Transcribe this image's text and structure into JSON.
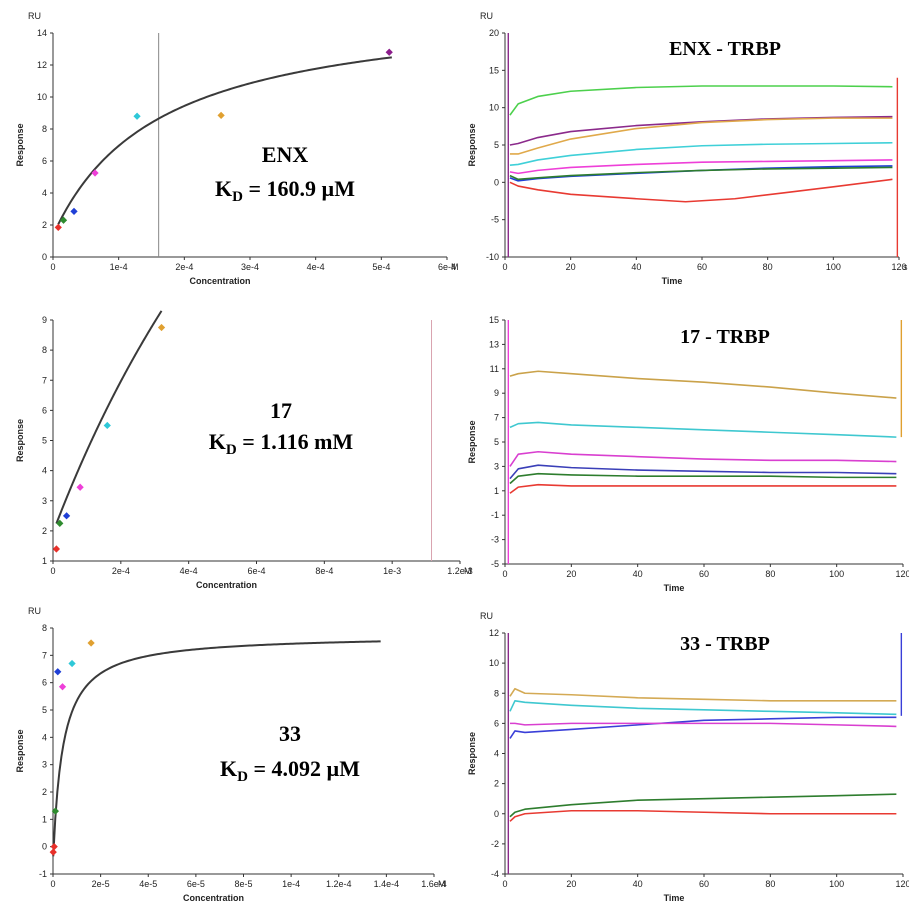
{
  "chart_data": [
    {
      "id": "enx-fit",
      "type": "scatter",
      "title": "",
      "xlabel": "Concentration",
      "ylabel": "Response",
      "y_unit": "RU",
      "x_unit": "M",
      "xlim": [
        0,
        0.0006
      ],
      "ylim": [
        0,
        14
      ],
      "x_ticks": [
        0,
        0.0001,
        0.0002,
        0.0003,
        0.0004,
        0.0005,
        0.0006
      ],
      "x_tick_labels": [
        "0",
        "1e-4",
        "2e-4",
        "3e-4",
        "4e-4",
        "5e-4",
        "6e-4"
      ],
      "y_ticks": [
        0,
        2,
        4,
        6,
        8,
        10,
        12,
        14
      ],
      "y_tick_labels": [
        "0",
        "2",
        "4",
        "6",
        "8",
        "10",
        "12",
        "14"
      ],
      "grid": false,
      "points": [
        {
          "x": 8e-06,
          "y": 1.85,
          "color": "#e8302a"
        },
        {
          "x": 1.6e-05,
          "y": 2.3,
          "color": "#2e8b2e"
        },
        {
          "x": 3.2e-05,
          "y": 2.85,
          "color": "#1f3fd6"
        },
        {
          "x": 6.4e-05,
          "y": 5.25,
          "color": "#ee3fd8"
        },
        {
          "x": 0.000128,
          "y": 8.8,
          "color": "#2ec8d8"
        },
        {
          "x": 0.000256,
          "y": 8.85,
          "color": "#e0a030"
        },
        {
          "x": 0.000512,
          "y": 12.8,
          "color": "#8b1c8b"
        }
      ],
      "fit": {
        "model": "steady-state",
        "Rmax": 14.6,
        "KD": 0.0001609,
        "offset": 1.35
      },
      "vline": 0.0001609,
      "vline_color": "#888888",
      "annotation": {
        "line1": "ENX",
        "kd_label": "K",
        "kd_sub": "D",
        "kd_value": "= 160.9 µM"
      }
    },
    {
      "id": "enx-sensor",
      "type": "line",
      "title": "ENX - TRBP",
      "xlabel": "Time",
      "ylabel": "Response",
      "y_unit": "RU",
      "x_unit": "s",
      "xlim": [
        0,
        120
      ],
      "ylim": [
        -10,
        20
      ],
      "x_ticks": [
        0,
        20,
        40,
        60,
        80,
        100,
        120
      ],
      "x_tick_labels": [
        "0",
        "20",
        "40",
        "60",
        "80",
        "100",
        "120"
      ],
      "y_ticks": [
        -10,
        -5,
        0,
        5,
        10,
        15,
        20
      ],
      "y_tick_labels": [
        "-10",
        "-5",
        "0",
        "5",
        "10",
        "15",
        "20"
      ],
      "grid": false,
      "series": [
        {
          "color": "#4cd04c",
          "x": [
            1.5,
            4,
            10,
            20,
            40,
            60,
            80,
            100,
            118
          ],
          "y": [
            9,
            10.5,
            11.5,
            12.2,
            12.7,
            12.9,
            12.9,
            12.9,
            12.8
          ]
        },
        {
          "color": "#8b2a8b",
          "x": [
            1.5,
            4,
            10,
            20,
            40,
            60,
            80,
            100,
            118
          ],
          "y": [
            5,
            5.2,
            6.0,
            6.8,
            7.6,
            8.1,
            8.5,
            8.7,
            8.8
          ]
        },
        {
          "color": "#e0a94a",
          "x": [
            1.5,
            4,
            10,
            20,
            40,
            60,
            80,
            100,
            118
          ],
          "y": [
            3.8,
            3.8,
            4.6,
            5.8,
            7.2,
            8.0,
            8.4,
            8.6,
            8.6
          ]
        },
        {
          "color": "#3fd0d8",
          "x": [
            1.5,
            4,
            10,
            20,
            40,
            60,
            80,
            100,
            118
          ],
          "y": [
            2.3,
            2.4,
            3.0,
            3.6,
            4.4,
            4.9,
            5.1,
            5.2,
            5.3
          ]
        },
        {
          "color": "#ee3fd8",
          "x": [
            1.5,
            4,
            10,
            20,
            40,
            60,
            80,
            100,
            118
          ],
          "y": [
            1.4,
            1.2,
            1.6,
            2.0,
            2.4,
            2.7,
            2.8,
            2.9,
            3.0
          ]
        },
        {
          "color": "#1f3fd6",
          "x": [
            1.5,
            4,
            10,
            20,
            40,
            60,
            80,
            100,
            118
          ],
          "y": [
            0.6,
            0.2,
            0.5,
            0.8,
            1.2,
            1.6,
            1.9,
            2.1,
            2.2
          ]
        },
        {
          "color": "#2e7d2e",
          "x": [
            1.5,
            4,
            10,
            20,
            40,
            60,
            80,
            100,
            118
          ],
          "y": [
            0.9,
            0.4,
            0.6,
            0.9,
            1.3,
            1.6,
            1.8,
            1.9,
            2.0
          ]
        },
        {
          "color": "#e83a32",
          "x": [
            1.5,
            4,
            10,
            20,
            40,
            55,
            70,
            85,
            100,
            118
          ],
          "y": [
            0,
            -0.5,
            -1.0,
            -1.6,
            -2.2,
            -2.6,
            -2.2,
            -1.4,
            -0.6,
            0.4
          ]
        }
      ],
      "edge_left": "#8b2a8b",
      "edge_right": "#e83a32",
      "edge_left_range": [
        -10,
        20
      ],
      "edge_right_range": [
        -10,
        14
      ]
    },
    {
      "id": "c17-fit",
      "type": "scatter",
      "title": "",
      "xlabel": "Concentration",
      "ylabel": "Response",
      "y_unit": "",
      "x_unit": "M",
      "xlim": [
        0,
        0.0012
      ],
      "ylim": [
        1,
        9
      ],
      "x_ticks": [
        0,
        0.0002,
        0.0004,
        0.0006,
        0.0008,
        0.001,
        0.0012
      ],
      "x_tick_labels": [
        "0",
        "2e-4",
        "4e-4",
        "6e-4",
        "8e-4",
        "1e-3",
        "1.2e-3"
      ],
      "y_ticks": [
        1,
        2,
        3,
        4,
        5,
        6,
        7,
        8,
        9
      ],
      "y_tick_labels": [
        "1",
        "2",
        "3",
        "4",
        "5",
        "6",
        "7",
        "8",
        "9"
      ],
      "grid": false,
      "points": [
        {
          "x": 1e-05,
          "y": 1.4,
          "color": "#e8302a"
        },
        {
          "x": 2e-05,
          "y": 2.25,
          "color": "#2e8b2e"
        },
        {
          "x": 4e-05,
          "y": 2.5,
          "color": "#1f3fd6"
        },
        {
          "x": 8e-05,
          "y": 3.45,
          "color": "#ee3fd8"
        },
        {
          "x": 0.00016,
          "y": 5.5,
          "color": "#2ec8d8"
        },
        {
          "x": 0.00032,
          "y": 8.75,
          "color": "#e0a030"
        }
      ],
      "fit": {
        "model": "steady-state",
        "Rmax": 33.0,
        "KD": 0.001116,
        "offset": 1.95,
        "xmax": 0.00032
      },
      "vline": 0.001116,
      "vline_color": "#d9a3b0",
      "annotation": {
        "line1": "17",
        "kd_label": "K",
        "kd_sub": "D",
        "kd_value": "= 1.116 mM"
      }
    },
    {
      "id": "c17-sensor",
      "type": "line",
      "title": "17 - TRBP",
      "xlabel": "Time",
      "ylabel": "Response",
      "y_unit": "",
      "x_unit": "",
      "xlim": [
        0,
        120
      ],
      "ylim": [
        -5,
        15
      ],
      "x_ticks": [
        0,
        20,
        40,
        60,
        80,
        100,
        120
      ],
      "x_tick_labels": [
        "0",
        "20",
        "40",
        "60",
        "80",
        "100",
        "120"
      ],
      "y_ticks": [
        -5,
        -3,
        -1,
        1,
        3,
        5,
        7,
        9,
        11,
        13,
        15
      ],
      "y_tick_labels": [
        "-5",
        "-3",
        "-1",
        "1",
        "3",
        "5",
        "7",
        "9",
        "11",
        "13",
        "15"
      ],
      "grid": false,
      "series": [
        {
          "color": "#caa24a",
          "x": [
            1.5,
            4,
            10,
            20,
            40,
            60,
            80,
            100,
            118
          ],
          "y": [
            10.4,
            10.6,
            10.8,
            10.6,
            10.2,
            9.9,
            9.5,
            9.0,
            8.6
          ]
        },
        {
          "color": "#3fc8d0",
          "x": [
            1.5,
            4,
            10,
            20,
            40,
            60,
            80,
            100,
            118
          ],
          "y": [
            6.2,
            6.5,
            6.6,
            6.4,
            6.2,
            6.0,
            5.8,
            5.6,
            5.4
          ]
        },
        {
          "color": "#d93fd0",
          "x": [
            1.5,
            4,
            10,
            20,
            40,
            60,
            80,
            100,
            118
          ],
          "y": [
            3.0,
            4.0,
            4.2,
            4.0,
            3.8,
            3.6,
            3.5,
            3.5,
            3.4
          ]
        },
        {
          "color": "#3a3fb8",
          "x": [
            1.5,
            4,
            10,
            20,
            40,
            60,
            80,
            100,
            118
          ],
          "y": [
            2.0,
            2.8,
            3.1,
            2.9,
            2.7,
            2.6,
            2.5,
            2.5,
            2.4
          ]
        },
        {
          "color": "#2e7d2e",
          "x": [
            1.5,
            4,
            10,
            20,
            40,
            60,
            80,
            100,
            118
          ],
          "y": [
            1.6,
            2.2,
            2.4,
            2.3,
            2.2,
            2.2,
            2.2,
            2.1,
            2.1
          ]
        },
        {
          "color": "#e83a32",
          "x": [
            1.5,
            4,
            10,
            20,
            40,
            60,
            80,
            100,
            118
          ],
          "y": [
            0.8,
            1.3,
            1.5,
            1.4,
            1.4,
            1.4,
            1.4,
            1.4,
            1.4
          ]
        }
      ],
      "edge_left": "#ee3fd8",
      "edge_right": "#e0a030",
      "edge_left_range": [
        -5,
        15
      ],
      "edge_right_range": [
        5.4,
        15
      ]
    },
    {
      "id": "c33-fit",
      "type": "scatter",
      "title": "",
      "xlabel": "Concentration",
      "ylabel": "Response",
      "y_unit": "RU",
      "x_unit": "M",
      "xlim": [
        0,
        0.00016
      ],
      "ylim": [
        -1,
        8
      ],
      "x_ticks": [
        0,
        2e-05,
        4e-05,
        6e-05,
        8e-05,
        0.0001,
        0.00012,
        0.00014,
        0.00016
      ],
      "x_tick_labels": [
        "0",
        "2e-5",
        "4e-5",
        "6e-5",
        "8e-5",
        "1e-4",
        "1.2e-4",
        "1.4e-4",
        "1.6e-4"
      ],
      "y_ticks": [
        -1,
        0,
        1,
        2,
        3,
        4,
        5,
        6,
        7,
        8
      ],
      "y_tick_labels": [
        "-1",
        "0",
        "1",
        "2",
        "3",
        "4",
        "5",
        "6",
        "7",
        "8"
      ],
      "grid": false,
      "points": [
        {
          "x": 5e-07,
          "y": 0.0,
          "color": "#e8302a"
        },
        {
          "x": 1e-07,
          "y": -0.2,
          "color": "#e8302a"
        },
        {
          "x": 1e-06,
          "y": 1.3,
          "color": "#2e8b2e"
        },
        {
          "x": 2e-06,
          "y": 6.4,
          "color": "#1f3fd6"
        },
        {
          "x": 4e-06,
          "y": 5.85,
          "color": "#ee3fd8"
        },
        {
          "x": 8e-06,
          "y": 6.7,
          "color": "#2ec8d8"
        },
        {
          "x": 1.6e-05,
          "y": 7.45,
          "color": "#e0a030"
        }
      ],
      "fit": {
        "model": "steady-state",
        "Rmax": 8.3,
        "KD": 4.092e-06,
        "offset": -0.55
      },
      "annotation": {
        "line1": "33",
        "kd_label": "K",
        "kd_sub": "D",
        "kd_value": "= 4.092 µM"
      }
    },
    {
      "id": "c33-sensor",
      "type": "line",
      "title": "33 - TRBP",
      "xlabel": "Time",
      "ylabel": "Response",
      "y_unit": "RU",
      "x_unit": "",
      "xlim": [
        0,
        120
      ],
      "ylim": [
        -4,
        12
      ],
      "x_ticks": [
        0,
        20,
        40,
        60,
        80,
        100,
        120
      ],
      "x_tick_labels": [
        "0",
        "20",
        "40",
        "60",
        "80",
        "100",
        "120"
      ],
      "y_ticks": [
        -4,
        -2,
        0,
        2,
        4,
        6,
        8,
        10,
        12
      ],
      "y_tick_labels": [
        "-4",
        "-2",
        "0",
        "2",
        "4",
        "6",
        "8",
        "10",
        "12"
      ],
      "grid": false,
      "series": [
        {
          "color": "#d4aa55",
          "x": [
            1.5,
            3,
            6,
            20,
            40,
            60,
            80,
            100,
            118
          ],
          "y": [
            7.8,
            8.3,
            8.0,
            7.9,
            7.7,
            7.6,
            7.5,
            7.5,
            7.5
          ]
        },
        {
          "color": "#3fc8d0",
          "x": [
            1.5,
            3,
            6,
            20,
            40,
            60,
            80,
            100,
            118
          ],
          "y": [
            6.8,
            7.5,
            7.4,
            7.2,
            7.0,
            6.9,
            6.8,
            6.7,
            6.6
          ]
        },
        {
          "color": "#3a3fd8",
          "x": [
            1.5,
            3,
            6,
            20,
            40,
            60,
            80,
            100,
            118
          ],
          "y": [
            5.0,
            5.5,
            5.4,
            5.6,
            5.9,
            6.2,
            6.3,
            6.4,
            6.4
          ]
        },
        {
          "color": "#d93fd0",
          "x": [
            1.5,
            3,
            6,
            20,
            40,
            60,
            80,
            100,
            118
          ],
          "y": [
            6.0,
            6.0,
            5.9,
            6.0,
            6.0,
            6.0,
            6.0,
            5.9,
            5.8
          ]
        },
        {
          "color": "#2e7d2e",
          "x": [
            1.5,
            3,
            6,
            20,
            40,
            60,
            80,
            100,
            118
          ],
          "y": [
            -0.2,
            0.1,
            0.3,
            0.6,
            0.9,
            1.0,
            1.1,
            1.2,
            1.3
          ]
        },
        {
          "color": "#e83a32",
          "x": [
            1.5,
            3,
            6,
            20,
            40,
            60,
            80,
            100,
            118
          ],
          "y": [
            -0.5,
            -0.2,
            0.0,
            0.2,
            0.2,
            0.1,
            0.0,
            0.0,
            0.0
          ]
        }
      ],
      "edge_left": "#8b2a8b",
      "edge_right": "#3a3fd8",
      "edge_left_range": [
        -4,
        12
      ],
      "edge_right_range": [
        6.5,
        12
      ]
    }
  ]
}
